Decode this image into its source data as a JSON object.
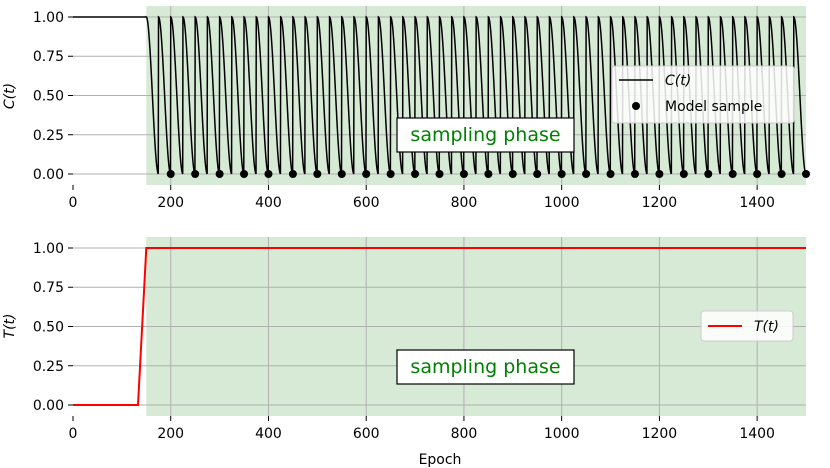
{
  "chart_data": [
    {
      "type": "line",
      "ylabel": "C(t)",
      "xlabel": "",
      "xlim": [
        0,
        1500
      ],
      "ylim": [
        -0.07,
        1.07
      ],
      "xticks": [
        0,
        200,
        400,
        600,
        800,
        1000,
        1200,
        1400
      ],
      "yticks": [
        0.0,
        0.25,
        0.5,
        0.75,
        1.0
      ],
      "ytick_labels": [
        "0.00",
        "0.25",
        "0.50",
        "0.75",
        "1.00"
      ],
      "grid": true,
      "shaded_region": {
        "x": [
          150,
          1500
        ],
        "color": "#d6ead6",
        "label": "sampling phase"
      },
      "sampling_start": 150,
      "cycle_period": 25,
      "series": [
        {
          "name": "C(t)",
          "color": "#000000",
          "description_form": "cosine decay each cycle",
          "x_start": 0,
          "x_end": 1500
        },
        {
          "name": "Model sample",
          "color": "#000000",
          "x": [
            200,
            250,
            300,
            350,
            400,
            450,
            500,
            550,
            600,
            650,
            700,
            750,
            800,
            850,
            900,
            950,
            1000,
            1050,
            1100,
            1150,
            1200,
            1250,
            1300,
            1350,
            1400,
            1450,
            1500
          ],
          "y": [
            0,
            0,
            0,
            0,
            0,
            0,
            0,
            0,
            0,
            0,
            0,
            0,
            0,
            0,
            0,
            0,
            0,
            0,
            0,
            0,
            0,
            0,
            0,
            0,
            0,
            0,
            0
          ]
        }
      ],
      "legend": {
        "position": "center-right",
        "entries": [
          "C(t)",
          "Model sample"
        ]
      }
    },
    {
      "type": "line",
      "ylabel": "T(t)",
      "xlabel": "Epoch",
      "xlim": [
        0,
        1500
      ],
      "ylim": [
        -0.07,
        1.07
      ],
      "xticks": [
        0,
        200,
        400,
        600,
        800,
        1000,
        1200,
        1400
      ],
      "yticks": [
        0.0,
        0.25,
        0.5,
        0.75,
        1.0
      ],
      "ytick_labels": [
        "0.00",
        "0.25",
        "0.50",
        "0.75",
        "1.00"
      ],
      "grid": true,
      "shaded_region": {
        "x": [
          150,
          1500
        ],
        "color": "#d6ead6",
        "label": "sampling phase"
      },
      "series": [
        {
          "name": "T(t)",
          "color": "#ff0000",
          "x": [
            0,
            133,
            150,
            1500
          ],
          "y": [
            0,
            0,
            1,
            1
          ]
        }
      ],
      "legend": {
        "position": "center-right",
        "entries": [
          "T(t)"
        ]
      }
    }
  ]
}
